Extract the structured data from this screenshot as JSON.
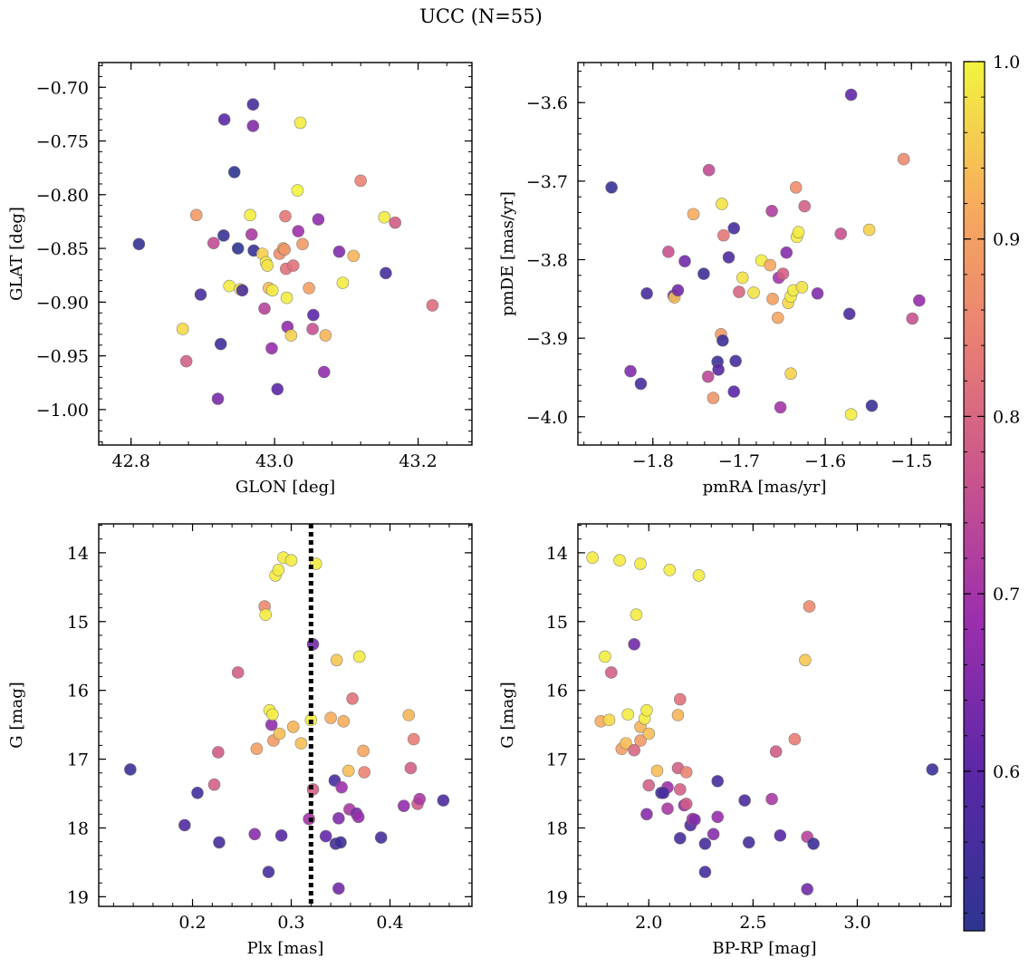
{
  "figure": {
    "title": "UCC (N=55)"
  },
  "colorbar": {
    "min": 0.51,
    "max": 1.0,
    "ticks": [
      0.6,
      0.7,
      0.8,
      0.9,
      1.0
    ],
    "tick_labels": [
      "0.6",
      "0.7",
      "0.8",
      "0.9",
      "1.0"
    ],
    "colormap": "plasma"
  },
  "chart_data": [
    {
      "type": "scatter",
      "name": "glon-glat",
      "xlabel": "GLON [deg]",
      "ylabel": "GLAT [deg]",
      "xlim": [
        42.755,
        43.275
      ],
      "ylim": [
        -1.033,
        -0.677
      ],
      "y_inverted": false,
      "xticks": [
        42.8,
        43.0,
        43.2
      ],
      "xtick_labels": [
        "42.8",
        "43.0",
        "43.2"
      ],
      "yticks": [
        -0.7,
        -0.75,
        -0.8,
        -0.85,
        -0.9,
        -0.95,
        -1.0
      ],
      "ytick_labels": [
        "−0.70",
        "−0.75",
        "−0.80",
        "−0.85",
        "−0.90",
        "−0.95",
        "−1.00"
      ],
      "vline": null,
      "points": [
        [
          42.811,
          -0.846,
          0.52
        ],
        [
          42.891,
          -0.819,
          0.89
        ],
        [
          42.872,
          -0.925,
          0.97
        ],
        [
          42.877,
          -0.955,
          0.79
        ],
        [
          42.897,
          -0.893,
          0.56
        ],
        [
          42.915,
          -0.845,
          0.75
        ],
        [
          42.921,
          -0.99,
          0.64
        ],
        [
          42.925,
          -0.939,
          0.55
        ],
        [
          42.929,
          -0.838,
          0.53
        ],
        [
          42.93,
          -0.73,
          0.6
        ],
        [
          42.937,
          -0.885,
          0.99
        ],
        [
          42.944,
          -0.779,
          0.51
        ],
        [
          42.949,
          -0.85,
          0.51
        ],
        [
          42.952,
          -0.888,
          0.99
        ],
        [
          42.955,
          -0.889,
          0.57
        ],
        [
          42.966,
          -0.819,
          0.99
        ],
        [
          42.968,
          -0.837,
          0.71
        ],
        [
          42.97,
          -0.716,
          0.56
        ],
        [
          42.97,
          -0.736,
          0.65
        ],
        [
          42.971,
          -0.852,
          0.53
        ],
        [
          42.983,
          -0.855,
          0.96
        ],
        [
          42.986,
          -0.906,
          0.73
        ],
        [
          42.988,
          -0.863,
          0.99
        ],
        [
          42.99,
          -0.866,
          0.98
        ],
        [
          42.992,
          -0.887,
          0.94
        ],
        [
          42.996,
          -0.943,
          0.68
        ],
        [
          42.997,
          -0.889,
          0.99
        ],
        [
          43.004,
          -0.981,
          0.6
        ],
        [
          43.007,
          -0.855,
          0.87
        ],
        [
          43.012,
          -0.85,
          0.91
        ],
        [
          43.014,
          -0.851,
          0.88
        ],
        [
          43.015,
          -0.82,
          0.83
        ],
        [
          43.016,
          -0.869,
          0.82
        ],
        [
          43.017,
          -0.896,
          0.99
        ],
        [
          43.018,
          -0.923,
          0.67
        ],
        [
          43.023,
          -0.931,
          0.96
        ],
        [
          43.026,
          -0.866,
          0.82
        ],
        [
          43.032,
          -0.796,
          1.0
        ],
        [
          43.033,
          -0.834,
          0.69
        ],
        [
          43.036,
          -0.733,
          0.99
        ],
        [
          43.039,
          -0.846,
          0.89
        ],
        [
          43.048,
          -0.887,
          0.9
        ],
        [
          43.053,
          -0.925,
          0.76
        ],
        [
          43.054,
          -0.912,
          0.6
        ],
        [
          43.061,
          -0.823,
          0.67
        ],
        [
          43.069,
          -0.965,
          0.67
        ],
        [
          43.071,
          -0.931,
          0.93
        ],
        [
          43.09,
          -0.853,
          0.65
        ],
        [
          43.095,
          -0.882,
          0.99
        ],
        [
          43.11,
          -0.857,
          0.93
        ],
        [
          43.12,
          -0.787,
          0.85
        ],
        [
          43.153,
          -0.821,
          0.99
        ],
        [
          43.155,
          -0.873,
          0.56
        ],
        [
          43.168,
          -0.826,
          0.78
        ],
        [
          43.22,
          -0.903,
          0.81
        ]
      ]
    },
    {
      "type": "scatter",
      "name": "pmra-pmde",
      "xlabel": "pmRA [mas/yr]",
      "ylabel": "pmDE [mas/yr]",
      "xlim": [
        -1.887,
        -1.454
      ],
      "ylim": [
        -4.036,
        -3.549
      ],
      "y_inverted": false,
      "xticks": [
        -1.8,
        -1.7,
        -1.6,
        -1.5
      ],
      "xtick_labels": [
        "−1.8",
        "−1.7",
        "−1.6",
        "−1.5"
      ],
      "yticks": [
        -3.6,
        -3.7,
        -3.8,
        -3.9,
        -4.0
      ],
      "ytick_labels": [
        "−3.6",
        "−3.7",
        "−3.8",
        "−3.9",
        "−4.0"
      ],
      "vline": null,
      "points": [
        [
          -1.848,
          -3.708,
          0.53
        ],
        [
          -1.826,
          -3.942,
          0.65
        ],
        [
          -1.814,
          -3.958,
          0.56
        ],
        [
          -1.807,
          -3.843,
          0.56
        ],
        [
          -1.782,
          -3.79,
          0.76
        ],
        [
          -1.776,
          -3.846,
          0.6
        ],
        [
          -1.775,
          -3.848,
          0.94
        ],
        [
          -1.771,
          -3.839,
          0.63
        ],
        [
          -1.763,
          -3.802,
          0.63
        ],
        [
          -1.753,
          -3.742,
          0.92
        ],
        [
          -1.741,
          -3.818,
          0.54
        ],
        [
          -1.736,
          -3.949,
          0.74
        ],
        [
          -1.735,
          -3.686,
          0.75
        ],
        [
          -1.73,
          -3.976,
          0.88
        ],
        [
          -1.725,
          -3.93,
          0.54
        ],
        [
          -1.724,
          -3.94,
          0.59
        ],
        [
          -1.721,
          -3.895,
          0.89
        ],
        [
          -1.72,
          -3.729,
          0.98
        ],
        [
          -1.719,
          -3.903,
          0.54
        ],
        [
          -1.718,
          -3.769,
          0.83
        ],
        [
          -1.712,
          -3.797,
          0.57
        ],
        [
          -1.706,
          -3.76,
          0.56
        ],
        [
          -1.706,
          -3.968,
          0.6
        ],
        [
          -1.704,
          -3.929,
          0.56
        ],
        [
          -1.7,
          -3.841,
          0.8
        ],
        [
          -1.696,
          -3.823,
          0.98
        ],
        [
          -1.683,
          -3.842,
          0.98
        ],
        [
          -1.674,
          -3.801,
          0.99
        ],
        [
          -1.664,
          -3.807,
          0.91
        ],
        [
          -1.662,
          -3.738,
          0.72
        ],
        [
          -1.661,
          -3.85,
          0.9
        ],
        [
          -1.655,
          -3.874,
          0.91
        ],
        [
          -1.654,
          -3.823,
          0.7
        ],
        [
          -1.652,
          -3.988,
          0.7
        ],
        [
          -1.649,
          -3.818,
          0.79
        ],
        [
          -1.645,
          -3.791,
          0.66
        ],
        [
          -1.643,
          -3.855,
          0.97
        ],
        [
          -1.64,
          -3.945,
          0.96
        ],
        [
          -1.64,
          -3.847,
          0.99
        ],
        [
          -1.637,
          -3.839,
          0.99
        ],
        [
          -1.634,
          -3.708,
          0.87
        ],
        [
          -1.633,
          -3.771,
          0.99
        ],
        [
          -1.631,
          -3.765,
          0.99
        ],
        [
          -1.627,
          -3.835,
          0.98
        ],
        [
          -1.624,
          -3.732,
          0.79
        ],
        [
          -1.609,
          -3.843,
          0.65
        ],
        [
          -1.582,
          -3.767,
          0.76
        ],
        [
          -1.572,
          -3.869,
          0.57
        ],
        [
          -1.57,
          -3.59,
          0.61
        ],
        [
          -1.57,
          -3.997,
          0.99
        ],
        [
          -1.549,
          -3.762,
          0.96
        ],
        [
          -1.546,
          -3.986,
          0.53
        ],
        [
          -1.509,
          -3.672,
          0.86
        ],
        [
          -1.499,
          -3.875,
          0.76
        ],
        [
          -1.491,
          -3.852,
          0.68
        ]
      ]
    },
    {
      "type": "scatter",
      "name": "plx-g",
      "xlabel": "Plx [mas]",
      "ylabel": "G [mag]",
      "xlim": [
        0.105,
        0.483
      ],
      "ylim": [
        13.58,
        19.14
      ],
      "y_inverted": true,
      "xticks": [
        0.2,
        0.3,
        0.4
      ],
      "xtick_labels": [
        "0.2",
        "0.3",
        "0.4"
      ],
      "yticks": [
        14,
        15,
        16,
        17,
        18,
        19
      ],
      "ytick_labels": [
        "14",
        "15",
        "16",
        "17",
        "18",
        "19"
      ],
      "vline": 0.32,
      "points": [
        [
          0.137,
          17.15,
          0.54
        ],
        [
          0.192,
          17.96,
          0.58
        ],
        [
          0.205,
          17.49,
          0.55
        ],
        [
          0.222,
          17.37,
          0.79
        ],
        [
          0.226,
          16.9,
          0.78
        ],
        [
          0.227,
          18.21,
          0.56
        ],
        [
          0.246,
          15.74,
          0.79
        ],
        [
          0.263,
          18.09,
          0.66
        ],
        [
          0.265,
          16.85,
          0.9
        ],
        [
          0.273,
          14.78,
          0.86
        ],
        [
          0.274,
          14.9,
          0.99
        ],
        [
          0.277,
          18.64,
          0.56
        ],
        [
          0.278,
          16.29,
          0.99
        ],
        [
          0.28,
          16.5,
          0.67
        ],
        [
          0.281,
          16.35,
          0.99
        ],
        [
          0.282,
          16.73,
          0.89
        ],
        [
          0.284,
          14.33,
          0.99
        ],
        [
          0.287,
          14.25,
          0.99
        ],
        [
          0.288,
          16.63,
          0.94
        ],
        [
          0.29,
          18.11,
          0.59
        ],
        [
          0.292,
          14.07,
          0.99
        ],
        [
          0.3,
          14.11,
          0.99
        ],
        [
          0.302,
          16.53,
          0.93
        ],
        [
          0.31,
          16.77,
          0.94
        ],
        [
          0.318,
          17.87,
          0.7
        ],
        [
          0.32,
          16.43,
          0.99
        ],
        [
          0.322,
          15.33,
          0.63
        ],
        [
          0.322,
          17.44,
          0.79
        ],
        [
          0.325,
          14.16,
          0.99
        ],
        [
          0.335,
          18.12,
          0.61
        ],
        [
          0.34,
          16.4,
          0.92
        ],
        [
          0.344,
          17.31,
          0.56
        ],
        [
          0.345,
          18.23,
          0.56
        ],
        [
          0.346,
          15.56,
          0.95
        ],
        [
          0.348,
          17.86,
          0.65
        ],
        [
          0.348,
          18.88,
          0.63
        ],
        [
          0.35,
          18.21,
          0.54
        ],
        [
          0.351,
          17.41,
          0.69
        ],
        [
          0.353,
          16.45,
          0.92
        ],
        [
          0.358,
          17.17,
          0.94
        ],
        [
          0.359,
          17.73,
          0.71
        ],
        [
          0.362,
          16.12,
          0.82
        ],
        [
          0.366,
          17.79,
          0.64
        ],
        [
          0.368,
          17.84,
          0.68
        ],
        [
          0.369,
          15.51,
          0.99
        ],
        [
          0.373,
          16.88,
          0.91
        ],
        [
          0.374,
          17.19,
          0.85
        ],
        [
          0.391,
          18.14,
          0.56
        ],
        [
          0.414,
          17.68,
          0.67
        ],
        [
          0.419,
          16.36,
          0.93
        ],
        [
          0.421,
          17.13,
          0.79
        ],
        [
          0.424,
          16.71,
          0.84
        ],
        [
          0.428,
          17.65,
          0.78
        ],
        [
          0.43,
          17.58,
          0.71
        ],
        [
          0.454,
          17.6,
          0.57
        ]
      ]
    },
    {
      "type": "scatter",
      "name": "bprp-g",
      "xlabel": "BP-RP [mag]",
      "ylabel": "G [mag]",
      "xlim": [
        1.66,
        3.45
      ],
      "ylim": [
        13.58,
        19.14
      ],
      "y_inverted": true,
      "xticks": [
        2.0,
        2.5,
        3.0
      ],
      "xtick_labels": [
        "2.0",
        "2.5",
        "3.0"
      ],
      "yticks": [
        14,
        15,
        16,
        17,
        18,
        19
      ],
      "ytick_labels": [
        "14",
        "15",
        "16",
        "17",
        "18",
        "19"
      ],
      "vline": null,
      "points": [
        [
          1.73,
          14.07,
          0.99
        ],
        [
          1.77,
          16.45,
          0.92
        ],
        [
          1.79,
          15.51,
          0.99
        ],
        [
          1.81,
          16.43,
          0.97
        ],
        [
          1.82,
          15.74,
          0.79
        ],
        [
          1.86,
          14.11,
          0.99
        ],
        [
          1.87,
          16.85,
          0.9
        ],
        [
          1.89,
          16.77,
          0.94
        ],
        [
          1.9,
          16.35,
          0.99
        ],
        [
          1.93,
          15.33,
          0.63
        ],
        [
          1.93,
          16.87,
          0.8
        ],
        [
          1.94,
          14.9,
          0.99
        ],
        [
          1.96,
          14.16,
          0.99
        ],
        [
          1.96,
          16.73,
          0.89
        ],
        [
          1.96,
          16.53,
          0.93
        ],
        [
          1.98,
          16.41,
          0.99
        ],
        [
          1.99,
          17.8,
          0.66
        ],
        [
          1.99,
          16.29,
          0.99
        ],
        [
          2.0,
          16.63,
          0.94
        ],
        [
          2.0,
          17.38,
          0.79
        ],
        [
          2.04,
          17.17,
          0.94
        ],
        [
          2.06,
          17.49,
          0.55
        ],
        [
          2.09,
          17.41,
          0.69
        ],
        [
          2.09,
          17.72,
          0.71
        ],
        [
          2.1,
          14.25,
          0.99
        ],
        [
          2.14,
          17.13,
          0.79
        ],
        [
          2.14,
          16.36,
          0.93
        ],
        [
          2.15,
          16.13,
          0.82
        ],
        [
          2.15,
          18.15,
          0.56
        ],
        [
          2.15,
          17.44,
          0.79
        ],
        [
          2.17,
          17.67,
          0.67
        ],
        [
          2.18,
          17.65,
          0.78
        ],
        [
          2.18,
          17.19,
          0.85
        ],
        [
          2.2,
          17.96,
          0.58
        ],
        [
          2.21,
          17.87,
          0.7
        ],
        [
          2.22,
          17.88,
          0.65
        ],
        [
          2.24,
          14.33,
          0.99
        ],
        [
          2.27,
          18.23,
          0.56
        ],
        [
          2.27,
          18.64,
          0.56
        ],
        [
          2.31,
          18.09,
          0.66
        ],
        [
          2.33,
          17.32,
          0.56
        ],
        [
          2.33,
          17.84,
          0.68
        ],
        [
          2.46,
          17.6,
          0.57
        ],
        [
          2.48,
          18.21,
          0.56
        ],
        [
          2.59,
          17.58,
          0.71
        ],
        [
          2.61,
          16.89,
          0.78
        ],
        [
          2.63,
          18.11,
          0.59
        ],
        [
          2.7,
          16.71,
          0.84
        ],
        [
          2.75,
          15.56,
          0.95
        ],
        [
          2.76,
          18.89,
          0.63
        ],
        [
          2.76,
          18.13,
          0.73
        ],
        [
          2.77,
          14.78,
          0.86
        ],
        [
          2.79,
          18.23,
          0.54
        ],
        [
          3.36,
          17.15,
          0.54
        ],
        [
          2.07,
          17.49,
          0.56
        ]
      ]
    }
  ]
}
